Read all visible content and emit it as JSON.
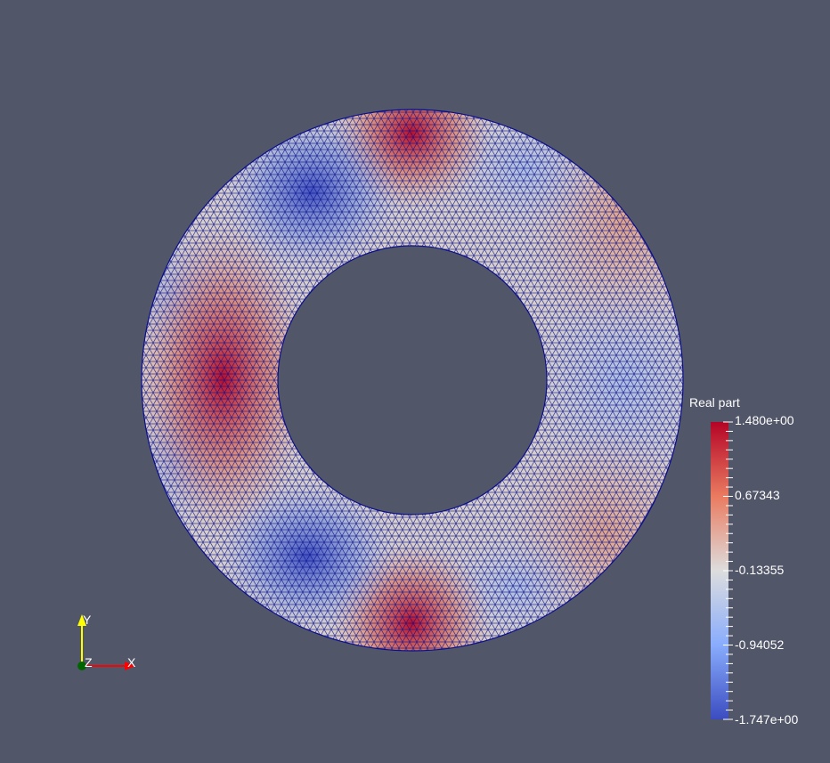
{
  "scene": {
    "background_color": "#525669",
    "mesh_line_color": "#00007f"
  },
  "colorbar": {
    "title": "Real part",
    "max_label": "1.480e+00",
    "labels": [
      "0.67343",
      "-0.13355",
      "-0.94052"
    ],
    "min_label": "-1.747e+00",
    "max_color": "#b40426",
    "mid_color": "#dddddd",
    "min_color": "#3b4cc0"
  },
  "axes": {
    "x_label": "X",
    "y_label": "Y",
    "z_label": "Z",
    "x_color": "#ff0000",
    "y_color": "#ffff00",
    "z_color": "#006400"
  }
}
